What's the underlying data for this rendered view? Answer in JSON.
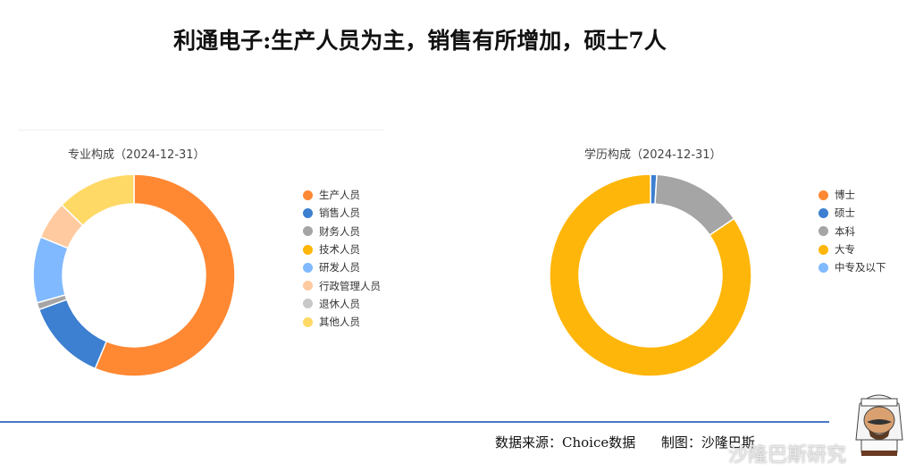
{
  "title": "利通电子:生产人员为主，销售有所增加，硕士7人",
  "chart_data": [
    {
      "type": "pie",
      "donut": true,
      "title": "专业构成（2024-12-31）",
      "legend_position": "right",
      "unit": "percent",
      "categories": [
        "生产人员",
        "销售人员",
        "财务人员",
        "技术人员",
        "研发人员",
        "行政管理人员",
        "退休人员",
        "其他人员"
      ],
      "values": [
        56.3,
        13.2,
        1.1,
        0,
        10.6,
        6.1,
        0,
        12.7
      ],
      "colors": [
        "#ff8833",
        "#3d7fd0",
        "#a5a5a5",
        "#ffb60a",
        "#80b9ff",
        "#ffcaa0",
        "#c8c8c8",
        "#ffd966"
      ]
    },
    {
      "type": "pie",
      "donut": true,
      "title": "学历构成（2024-12-31）",
      "legend_position": "right",
      "unit": "percent",
      "categories": [
        "博士",
        "硕士",
        "本科",
        "大专",
        "中专及以下"
      ],
      "values": [
        0,
        1.0,
        14.5,
        84.5,
        0
      ],
      "colors": [
        "#ff8833",
        "#3d7fd0",
        "#a5a5a5",
        "#ffb60a",
        "#80b9ff"
      ]
    }
  ],
  "footer": {
    "source": "数据来源：Choice数据",
    "maker": "制图：沙隆巴斯"
  },
  "watermark": "沙隆巴斯研究",
  "accent_line_color": "#4a78c8"
}
